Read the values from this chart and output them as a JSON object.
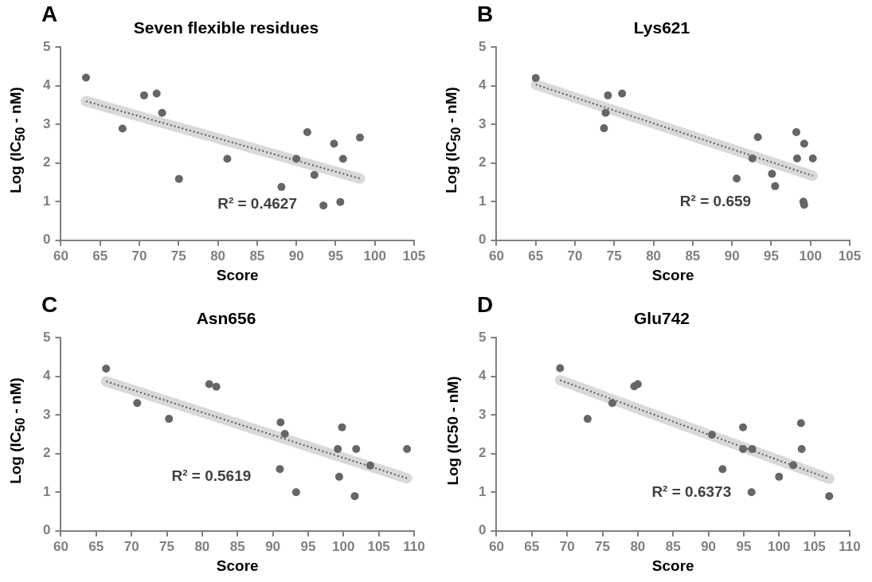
{
  "chart_data": [
    {
      "type": "scatter",
      "title": "Seven flexible residues",
      "xlabel": "Score",
      "ylabel": "Log (IC$_{50}$ - nM)",
      "xlim": [
        60,
        105
      ],
      "xticks": [
        60,
        65,
        70,
        75,
        80,
        85,
        90,
        95,
        100,
        105
      ],
      "ylim": [
        0,
        5
      ],
      "yticks": [
        0,
        1,
        2,
        3,
        4,
        5
      ],
      "marker": "circle",
      "annotations": [
        "A",
        "R² = 0.4627"
      ],
      "series": [
        {
          "type": "scatter",
          "color": "#666666",
          "x": [
            63.2,
            67.85,
            70.6,
            72.2,
            72.9,
            75.05,
            81.2,
            88.1,
            90.0,
            91.4,
            92.3,
            93.45,
            94.8,
            95.6,
            95.95,
            98.1
          ],
          "values": [
            4.21,
            2.89,
            3.75,
            3.8,
            3.3,
            1.59,
            2.11,
            1.38,
            2.11,
            2.8,
            1.69,
            0.9,
            2.5,
            0.99,
            2.11,
            2.66
          ]
        },
        {
          "type": "line",
          "color": "#595959",
          "line_style": "dotted",
          "marker": "none",
          "x": [
            63.2,
            98.1
          ],
          "values": [
            3.6,
            1.6
          ]
        }
      ]
    },
    {
      "type": "scatter",
      "title": "Lys621",
      "xlabel": "Score",
      "ylabel": "Log (IC$_{50}$ - nM)",
      "xlim": [
        60,
        105
      ],
      "xticks": [
        60,
        65,
        70,
        75,
        80,
        85,
        90,
        95,
        100,
        105
      ],
      "ylim": [
        0,
        5
      ],
      "yticks": [
        0,
        1,
        2,
        3,
        4,
        5
      ],
      "marker": "circle",
      "annotations": [
        "B",
        "R² = 0.659"
      ],
      "series": [
        {
          "type": "scatter",
          "color": "#666666",
          "x": [
            65,
            73.7,
            73.9,
            74.2,
            76,
            90.6,
            92.6,
            93.3,
            95.1,
            95.5,
            98.2,
            98.3,
            99.1,
            99.2,
            99.2,
            100.3
          ],
          "values": [
            4.2,
            2.9,
            3.3,
            3.75,
            3.8,
            1.6,
            2.12,
            2.67,
            1.72,
            1.4,
            2.8,
            2.12,
            1.0,
            0.92,
            2.5,
            2.12
          ]
        },
        {
          "type": "line",
          "color": "#595959",
          "line_style": "dotted",
          "marker": "none",
          "x": [
            65,
            100.3
          ],
          "values": [
            4.03,
            1.67
          ]
        }
      ]
    },
    {
      "type": "scatter",
      "title": "Asn656",
      "xlabel": "Score",
      "ylabel": "Log (IC$_{50}$ - nM)",
      "xlim": [
        60,
        110
      ],
      "xticks": [
        60,
        65,
        70,
        75,
        80,
        85,
        90,
        95,
        100,
        105,
        110
      ],
      "ylim": [
        0,
        5
      ],
      "yticks": [
        0,
        1,
        2,
        3,
        4,
        5
      ],
      "marker": "circle",
      "annotations": [
        "C",
        "R² = 0.5619"
      ],
      "series": [
        {
          "type": "scatter",
          "color": "#666666",
          "x": [
            66.4,
            70.8,
            75.3,
            81.0,
            82.0,
            91.1,
            91.7,
            91.0,
            93.3,
            99.2,
            99.8,
            99.4,
            101.8,
            101.6,
            103.8,
            109.0
          ],
          "values": [
            4.2,
            3.31,
            2.9,
            3.8,
            3.73,
            2.81,
            2.51,
            1.6,
            1.0,
            2.12,
            2.68,
            1.4,
            2.12,
            0.9,
            1.69,
            2.12
          ]
        },
        {
          "type": "line",
          "color": "#595959",
          "line_style": "dotted",
          "marker": "none",
          "x": [
            66.4,
            109.0
          ],
          "values": [
            3.87,
            1.36
          ]
        }
      ]
    },
    {
      "type": "scatter",
      "title": "Glu742",
      "xlabel": "Score",
      "ylabel": "Log (IC50 - nM)",
      "xlim": [
        60,
        110
      ],
      "xticks": [
        60,
        65,
        70,
        75,
        80,
        85,
        90,
        95,
        100,
        105,
        110
      ],
      "ylim": [
        0,
        5
      ],
      "yticks": [
        0,
        1,
        2,
        3,
        4,
        5
      ],
      "marker": "circle",
      "annotations": [
        "D",
        "R² = 0.6373"
      ],
      "series": [
        {
          "type": "scatter",
          "color": "#666666",
          "x": [
            69.0,
            72.9,
            76.4,
            79.5,
            80.0,
            90.5,
            92.0,
            94.9,
            94.9,
            96.2,
            96.1,
            100.0,
            102.0,
            103.1,
            103.2,
            107.1
          ],
          "values": [
            4.21,
            2.9,
            3.31,
            3.74,
            3.8,
            2.49,
            1.6,
            2.68,
            2.12,
            2.12,
            1.0,
            1.4,
            1.7,
            2.79,
            2.12,
            0.9
          ]
        },
        {
          "type": "line",
          "color": "#595959",
          "line_style": "dotted",
          "marker": "none",
          "x": [
            69.0,
            107.1
          ],
          "values": [
            3.9,
            1.35
          ]
        }
      ]
    }
  ]
}
